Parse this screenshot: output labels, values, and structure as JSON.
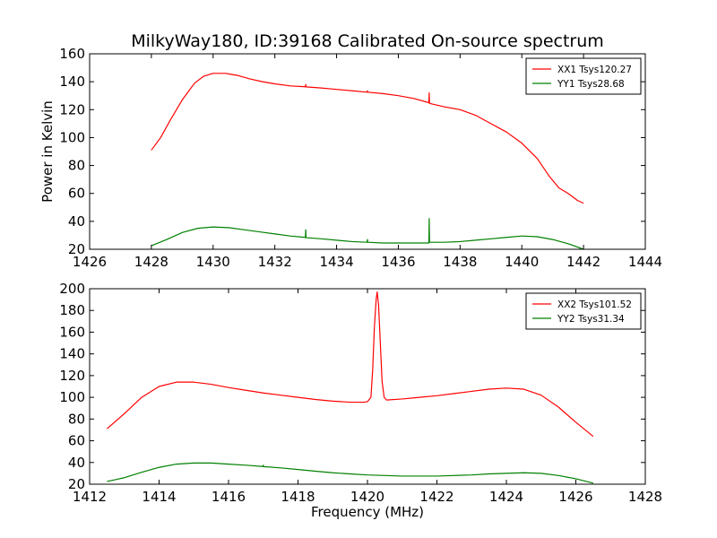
{
  "figure": {
    "title": "MilkyWay180, ID:39168 Calibrated On-source spectrum",
    "colors": {
      "red": "#ff0000",
      "green": "#008000",
      "axes": "#000000"
    }
  },
  "chart_data": [
    {
      "type": "line",
      "title": "MilkyWay180, ID:39168 Calibrated On-source spectrum",
      "xlabel": "",
      "ylabel": "Power in Kelvin",
      "xlim": [
        1426,
        1444
      ],
      "ylim": [
        20,
        160
      ],
      "xticks": [
        "1426",
        "1428",
        "1430",
        "1432",
        "1434",
        "1436",
        "1438",
        "1440",
        "1442",
        "1444"
      ],
      "yticks": [
        "20",
        "40",
        "60",
        "80",
        "100",
        "120",
        "140",
        "160"
      ],
      "grid": false,
      "legend_position": "top-right",
      "series": [
        {
          "name": "XX1 Tsys120.27",
          "color": "#ff0000",
          "points": [
            [
              1428.0,
              91
            ],
            [
              1428.3,
              100
            ],
            [
              1428.6,
              112
            ],
            [
              1429.0,
              127
            ],
            [
              1429.4,
              139
            ],
            [
              1429.7,
              144
            ],
            [
              1430.0,
              146
            ],
            [
              1430.4,
              146
            ],
            [
              1430.8,
              144.5
            ],
            [
              1431.2,
              142
            ],
            [
              1431.6,
              140
            ],
            [
              1432.0,
              138.5
            ],
            [
              1432.5,
              137
            ],
            [
              1432.99,
              136.4
            ],
            [
              1433.0,
              138
            ],
            [
              1433.01,
              136.3
            ],
            [
              1433.5,
              135.5
            ],
            [
              1434.0,
              134.5
            ],
            [
              1434.5,
              133.5
            ],
            [
              1434.99,
              132.5
            ],
            [
              1435.0,
              133.5
            ],
            [
              1435.01,
              132.5
            ],
            [
              1435.5,
              131.5
            ],
            [
              1436.0,
              130
            ],
            [
              1436.5,
              128
            ],
            [
              1436.99,
              125
            ],
            [
              1437.0,
              132
            ],
            [
              1437.01,
              124.5
            ],
            [
              1437.5,
              122
            ],
            [
              1438.0,
              120
            ],
            [
              1438.5,
              116
            ],
            [
              1439.0,
              110
            ],
            [
              1439.5,
              104
            ],
            [
              1440.0,
              96
            ],
            [
              1440.5,
              85
            ],
            [
              1440.9,
              72
            ],
            [
              1441.2,
              64
            ],
            [
              1441.5,
              60
            ],
            [
              1441.8,
              55
            ],
            [
              1442.0,
              53
            ]
          ]
        },
        {
          "name": "YY1 Tsys28.68",
          "color": "#008000",
          "points": [
            [
              1428.0,
              22.5
            ],
            [
              1428.5,
              27
            ],
            [
              1429.0,
              32
            ],
            [
              1429.5,
              35
            ],
            [
              1430.0,
              36
            ],
            [
              1430.5,
              35.5
            ],
            [
              1431.0,
              34
            ],
            [
              1431.5,
              32.5
            ],
            [
              1432.0,
              31
            ],
            [
              1432.5,
              29.5
            ],
            [
              1432.99,
              28.5
            ],
            [
              1433.0,
              34
            ],
            [
              1433.01,
              28.3
            ],
            [
              1433.5,
              27.5
            ],
            [
              1434.0,
              26.5
            ],
            [
              1434.5,
              25.5
            ],
            [
              1434.99,
              25
            ],
            [
              1435.0,
              27
            ],
            [
              1435.01,
              25
            ],
            [
              1435.5,
              24.5
            ],
            [
              1436.0,
              24.5
            ],
            [
              1436.5,
              24.5
            ],
            [
              1436.99,
              24.5
            ],
            [
              1437.0,
              42
            ],
            [
              1437.01,
              25
            ],
            [
              1437.5,
              25
            ],
            [
              1438.0,
              25.5
            ],
            [
              1438.5,
              26.5
            ],
            [
              1439.0,
              27.5
            ],
            [
              1439.5,
              28.5
            ],
            [
              1440.0,
              29.5
            ],
            [
              1440.5,
              29
            ],
            [
              1441.0,
              27
            ],
            [
              1441.5,
              24
            ],
            [
              1442.0,
              20
            ]
          ]
        }
      ]
    },
    {
      "type": "line",
      "title": "",
      "xlabel": "Frequency (MHz)",
      "ylabel": "",
      "xlim": [
        1412,
        1428
      ],
      "ylim": [
        20,
        200
      ],
      "xticks": [
        "1412",
        "1414",
        "1416",
        "1418",
        "1420",
        "1422",
        "1424",
        "1426",
        "1428"
      ],
      "yticks": [
        "20",
        "40",
        "60",
        "80",
        "100",
        "120",
        "140",
        "160",
        "180",
        "200"
      ],
      "grid": false,
      "legend_position": "top-right",
      "series": [
        {
          "name": "XX2 Tsys101.52",
          "color": "#ff0000",
          "points": [
            [
              1412.5,
              71
            ],
            [
              1413.0,
              85
            ],
            [
              1413.5,
              100
            ],
            [
              1414.0,
              110
            ],
            [
              1414.5,
              114
            ],
            [
              1415.0,
              114
            ],
            [
              1415.5,
              112
            ],
            [
              1416.0,
              109
            ],
            [
              1416.5,
              106.5
            ],
            [
              1417.0,
              104
            ],
            [
              1417.5,
              102
            ],
            [
              1418.0,
              100
            ],
            [
              1418.5,
              98
            ],
            [
              1419.0,
              96.5
            ],
            [
              1419.5,
              95.5
            ],
            [
              1419.9,
              95.5
            ],
            [
              1420.0,
              96
            ],
            [
              1420.1,
              100
            ],
            [
              1420.15,
              125
            ],
            [
              1420.2,
              165
            ],
            [
              1420.25,
              190
            ],
            [
              1420.28,
              197
            ],
            [
              1420.32,
              185
            ],
            [
              1420.37,
              150
            ],
            [
              1420.42,
              115
            ],
            [
              1420.48,
              100
            ],
            [
              1420.55,
              97.5
            ],
            [
              1421.0,
              98.5
            ],
            [
              1421.5,
              100
            ],
            [
              1422.0,
              101.5
            ],
            [
              1422.5,
              103.5
            ],
            [
              1423.0,
              105.5
            ],
            [
              1423.5,
              107.5
            ],
            [
              1424.0,
              108.5
            ],
            [
              1424.5,
              107.5
            ],
            [
              1425.0,
              102
            ],
            [
              1425.5,
              91
            ],
            [
              1426.0,
              77
            ],
            [
              1426.5,
              64
            ]
          ]
        },
        {
          "name": "YY2 Tsys31.34",
          "color": "#008000",
          "points": [
            [
              1412.5,
              22.5
            ],
            [
              1413.0,
              26
            ],
            [
              1413.5,
              31
            ],
            [
              1414.0,
              35.5
            ],
            [
              1414.5,
              38.5
            ],
            [
              1415.0,
              39.5
            ],
            [
              1415.5,
              39.5
            ],
            [
              1416.0,
              38.5
            ],
            [
              1416.5,
              37.5
            ],
            [
              1416.99,
              36.3
            ],
            [
              1417.0,
              37.5
            ],
            [
              1417.01,
              36.2
            ],
            [
              1417.5,
              35
            ],
            [
              1418.0,
              33.5
            ],
            [
              1418.5,
              32
            ],
            [
              1419.0,
              30.5
            ],
            [
              1419.5,
              29.5
            ],
            [
              1420.0,
              28.5
            ],
            [
              1420.5,
              28
            ],
            [
              1421.0,
              27.5
            ],
            [
              1421.5,
              27.5
            ],
            [
              1422.0,
              27.5
            ],
            [
              1422.5,
              28
            ],
            [
              1423.0,
              28.5
            ],
            [
              1423.5,
              29.5
            ],
            [
              1424.0,
              30
            ],
            [
              1424.5,
              30.5
            ],
            [
              1425.0,
              30
            ],
            [
              1425.5,
              28
            ],
            [
              1426.0,
              25
            ],
            [
              1426.5,
              21
            ]
          ]
        }
      ]
    }
  ]
}
